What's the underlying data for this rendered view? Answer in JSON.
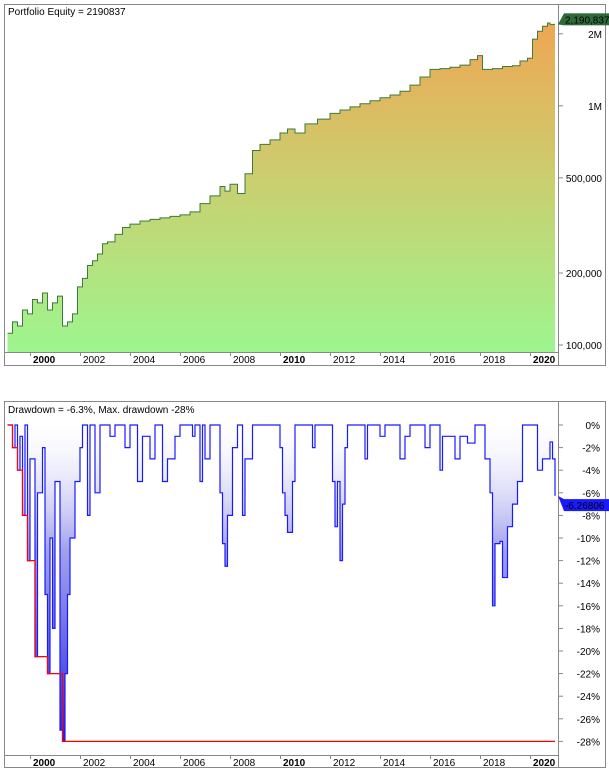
{
  "chart_data": [
    {
      "type": "area",
      "title": "Portfolio Equity = 2190837",
      "y_scale": "log",
      "ylim": [
        90000,
        2500000
      ],
      "xlim": [
        1999.1,
        2021.0
      ],
      "y_ticks": [
        {
          "value": 100000,
          "label": "100,000"
        },
        {
          "value": 200000,
          "label": "200,000"
        },
        {
          "value": 500000,
          "label": "500,000"
        },
        {
          "value": 1000000,
          "label": "1M"
        },
        {
          "value": 2000000,
          "label": "2M"
        }
      ],
      "x_ticks": [
        {
          "value": 2000,
          "label": "2000",
          "bold": true
        },
        {
          "value": 2002,
          "label": "2002"
        },
        {
          "value": 2004,
          "label": "2004"
        },
        {
          "value": 2006,
          "label": "2006"
        },
        {
          "value": 2008,
          "label": "2008"
        },
        {
          "value": 2010,
          "label": "2010",
          "bold": true
        },
        {
          "value": 2012,
          "label": "2012"
        },
        {
          "value": 2014,
          "label": "2014"
        },
        {
          "value": 2016,
          "label": "2016"
        },
        {
          "value": 2018,
          "label": "2018"
        },
        {
          "value": 2020,
          "label": "2020",
          "bold": true
        }
      ],
      "last_value_label": "2,190,837",
      "colors": {
        "line": "#3d7a3d",
        "fill_top": "#f0a552",
        "fill_bottom": "#9ef58e",
        "tag": "#2f6a3a"
      },
      "series": [
        {
          "points": [
            [
              1999.1,
              112000
            ],
            [
              1999.3,
              125000
            ],
            [
              1999.5,
              120000
            ],
            [
              1999.7,
              140000
            ],
            [
              1999.9,
              135000
            ],
            [
              2000.1,
              155000
            ],
            [
              2000.3,
              150000
            ],
            [
              2000.5,
              165000
            ],
            [
              2000.7,
              140000
            ],
            [
              2000.9,
              150000
            ],
            [
              2001.1,
              160000
            ],
            [
              2001.3,
              120000
            ],
            [
              2001.5,
              125000
            ],
            [
              2001.7,
              135000
            ],
            [
              2001.9,
              175000
            ],
            [
              2002.1,
              190000
            ],
            [
              2002.3,
              215000
            ],
            [
              2002.5,
              225000
            ],
            [
              2002.7,
              240000
            ],
            [
              2002.9,
              265000
            ],
            [
              2003.1,
              270000
            ],
            [
              2003.4,
              290000
            ],
            [
              2003.7,
              310000
            ],
            [
              2004.0,
              320000
            ],
            [
              2004.4,
              330000
            ],
            [
              2004.8,
              335000
            ],
            [
              2005.2,
              340000
            ],
            [
              2005.6,
              345000
            ],
            [
              2006.0,
              350000
            ],
            [
              2006.4,
              360000
            ],
            [
              2006.8,
              390000
            ],
            [
              2007.2,
              420000
            ],
            [
              2007.6,
              460000
            ],
            [
              2007.8,
              440000
            ],
            [
              2008.0,
              470000
            ],
            [
              2008.3,
              430000
            ],
            [
              2008.6,
              520000
            ],
            [
              2008.9,
              650000
            ],
            [
              2009.2,
              690000
            ],
            [
              2009.6,
              720000
            ],
            [
              2010.0,
              770000
            ],
            [
              2010.3,
              800000
            ],
            [
              2010.6,
              770000
            ],
            [
              2011.0,
              840000
            ],
            [
              2011.5,
              880000
            ],
            [
              2012.0,
              930000
            ],
            [
              2012.4,
              960000
            ],
            [
              2012.8,
              990000
            ],
            [
              2013.2,
              1020000
            ],
            [
              2013.6,
              1050000
            ],
            [
              2014.0,
              1080000
            ],
            [
              2014.4,
              1110000
            ],
            [
              2014.8,
              1150000
            ],
            [
              2015.2,
              1220000
            ],
            [
              2015.6,
              1320000
            ],
            [
              2016.0,
              1420000
            ],
            [
              2016.4,
              1430000
            ],
            [
              2016.8,
              1450000
            ],
            [
              2017.2,
              1480000
            ],
            [
              2017.6,
              1560000
            ],
            [
              2017.9,
              1620000
            ],
            [
              2018.1,
              1420000
            ],
            [
              2018.5,
              1430000
            ],
            [
              2018.9,
              1460000
            ],
            [
              2019.3,
              1470000
            ],
            [
              2019.6,
              1540000
            ],
            [
              2019.9,
              1580000
            ],
            [
              2020.1,
              1900000
            ],
            [
              2020.3,
              2050000
            ],
            [
              2020.5,
              2150000
            ],
            [
              2020.7,
              2220000
            ],
            [
              2020.8,
              2190837
            ],
            [
              2021.0,
              2190837
            ]
          ]
        }
      ]
    },
    {
      "type": "area",
      "title": "Drawdown = -6.3%, Max. drawdown -28%",
      "ylim": [
        -29,
        0.5
      ],
      "xlim": [
        1999.1,
        2021.0
      ],
      "y_ticks": [
        {
          "value": 0,
          "label": "0%"
        },
        {
          "value": -2,
          "label": "-2%"
        },
        {
          "value": -4,
          "label": "-4%"
        },
        {
          "value": -6,
          "label": "-6%"
        },
        {
          "value": -8,
          "label": "-8%"
        },
        {
          "value": -10,
          "label": "-10%"
        },
        {
          "value": -12,
          "label": "-12%"
        },
        {
          "value": -14,
          "label": "-14%"
        },
        {
          "value": -16,
          "label": "-16%"
        },
        {
          "value": -18,
          "label": "-18%"
        },
        {
          "value": -20,
          "label": "-20%"
        },
        {
          "value": -22,
          "label": "-22%"
        },
        {
          "value": -24,
          "label": "-24%"
        },
        {
          "value": -26,
          "label": "-26%"
        },
        {
          "value": -28,
          "label": "-28%"
        }
      ],
      "x_ticks": [
        {
          "value": 2000,
          "label": "2000",
          "bold": true
        },
        {
          "value": 2002,
          "label": "2002"
        },
        {
          "value": 2004,
          "label": "2004"
        },
        {
          "value": 2006,
          "label": "2006"
        },
        {
          "value": 2008,
          "label": "2008"
        },
        {
          "value": 2010,
          "label": "2010",
          "bold": true
        },
        {
          "value": 2012,
          "label": "2012"
        },
        {
          "value": 2014,
          "label": "2014"
        },
        {
          "value": 2016,
          "label": "2016"
        },
        {
          "value": 2018,
          "label": "2018"
        },
        {
          "value": 2020,
          "label": "2020",
          "bold": true
        }
      ],
      "last_value_label": "-6.26806",
      "colors": {
        "line": "#1a1aff",
        "fill": "#5555dd",
        "max_drawdown": "#ff0000",
        "tag": "#1a1aff"
      },
      "series": [
        {
          "name": "Drawdown",
          "points": [
            [
              1999.1,
              0
            ],
            [
              1999.3,
              -2
            ],
            [
              1999.4,
              0
            ],
            [
              1999.5,
              -4
            ],
            [
              1999.6,
              -1
            ],
            [
              1999.7,
              -8
            ],
            [
              1999.8,
              0
            ],
            [
              1999.9,
              -12
            ],
            [
              2000.0,
              -3
            ],
            [
              2000.2,
              -20.5
            ],
            [
              2000.3,
              -6
            ],
            [
              2000.5,
              -2
            ],
            [
              2000.6,
              -15
            ],
            [
              2000.7,
              -22
            ],
            [
              2000.8,
              -10
            ],
            [
              2000.9,
              -18
            ],
            [
              2001.0,
              -5
            ],
            [
              2001.2,
              -27
            ],
            [
              2001.3,
              -28
            ],
            [
              2001.4,
              -22
            ],
            [
              2001.5,
              -15
            ],
            [
              2001.6,
              -10
            ],
            [
              2001.8,
              -5
            ],
            [
              2002.0,
              -2
            ],
            [
              2002.1,
              0
            ],
            [
              2002.3,
              -8
            ],
            [
              2002.4,
              0
            ],
            [
              2002.6,
              -6
            ],
            [
              2002.8,
              0
            ],
            [
              2003.2,
              -1
            ],
            [
              2003.4,
              0
            ],
            [
              2003.8,
              -2
            ],
            [
              2004.0,
              0
            ],
            [
              2004.3,
              -5
            ],
            [
              2004.5,
              -1
            ],
            [
              2004.8,
              -3
            ],
            [
              2005.0,
              0
            ],
            [
              2005.3,
              -5
            ],
            [
              2005.5,
              -3
            ],
            [
              2005.8,
              -1
            ],
            [
              2006.0,
              0
            ],
            [
              2006.5,
              -1
            ],
            [
              2006.6,
              0
            ],
            [
              2006.8,
              -5
            ],
            [
              2006.9,
              0
            ],
            [
              2007.0,
              -3
            ],
            [
              2007.2,
              0
            ],
            [
              2007.6,
              -6
            ],
            [
              2007.7,
              -10.5
            ],
            [
              2007.8,
              -12.5
            ],
            [
              2007.9,
              -8
            ],
            [
              2008.1,
              -2
            ],
            [
              2008.3,
              0
            ],
            [
              2008.5,
              -8
            ],
            [
              2008.6,
              -3
            ],
            [
              2008.9,
              0
            ],
            [
              2010.0,
              -2
            ],
            [
              2010.1,
              -6
            ],
            [
              2010.2,
              -8
            ],
            [
              2010.3,
              -9.5
            ],
            [
              2010.5,
              -5
            ],
            [
              2010.6,
              0
            ],
            [
              2011.3,
              -2
            ],
            [
              2011.4,
              0
            ],
            [
              2012.1,
              -5
            ],
            [
              2012.2,
              -9
            ],
            [
              2012.3,
              -5
            ],
            [
              2012.4,
              -12
            ],
            [
              2012.5,
              -7
            ],
            [
              2012.6,
              -2
            ],
            [
              2012.7,
              0
            ],
            [
              2013.4,
              -3
            ],
            [
              2013.5,
              0
            ],
            [
              2014.0,
              -1
            ],
            [
              2014.2,
              0
            ],
            [
              2014.8,
              -3
            ],
            [
              2015.0,
              -1
            ],
            [
              2015.2,
              0
            ],
            [
              2015.8,
              -2
            ],
            [
              2016.0,
              0
            ],
            [
              2016.4,
              -4
            ],
            [
              2016.5,
              -1
            ],
            [
              2017.0,
              -3
            ],
            [
              2017.2,
              -1
            ],
            [
              2017.5,
              -1.6
            ],
            [
              2017.8,
              0
            ],
            [
              2018.2,
              -3
            ],
            [
              2018.4,
              -6
            ],
            [
              2018.5,
              -16
            ],
            [
              2018.6,
              -10.5
            ],
            [
              2018.8,
              -10.3
            ],
            [
              2018.9,
              -13.5
            ],
            [
              2019.1,
              -9
            ],
            [
              2019.3,
              -7
            ],
            [
              2019.5,
              -5
            ],
            [
              2019.7,
              0
            ],
            [
              2020.2,
              0
            ],
            [
              2020.3,
              -4
            ],
            [
              2020.5,
              -3
            ],
            [
              2020.8,
              -1.5
            ],
            [
              2020.9,
              -3
            ],
            [
              2021.0,
              -6.27
            ]
          ]
        },
        {
          "name": "Max. drawdown",
          "points": [
            [
              1999.1,
              0
            ],
            [
              1999.3,
              -2
            ],
            [
              1999.5,
              -4
            ],
            [
              1999.7,
              -8
            ],
            [
              1999.9,
              -12
            ],
            [
              2000.2,
              -20.5
            ],
            [
              2000.7,
              -22
            ],
            [
              2001.3,
              -28
            ],
            [
              2021.0,
              -28
            ]
          ]
        }
      ]
    }
  ]
}
